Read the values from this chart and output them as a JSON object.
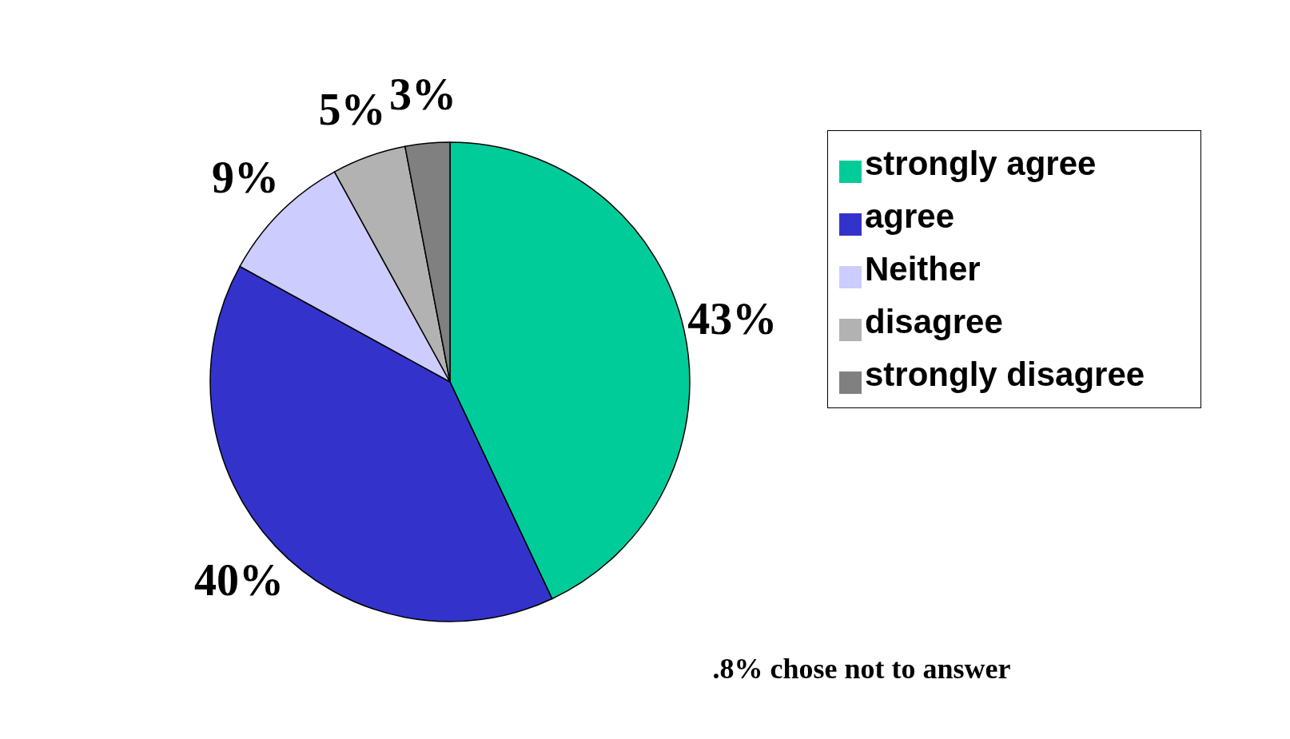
{
  "chart_data": {
    "type": "pie",
    "categories": [
      "strongly agree",
      "agree",
      "Neither",
      "disagree",
      "strongly disagree"
    ],
    "values": [
      43,
      40,
      9,
      5,
      3
    ],
    "colors": [
      "#00cc99",
      "#3333cc",
      "#ccccff",
      "#b2b2b2",
      "#808080"
    ],
    "value_labels": [
      "43%",
      "40%",
      "9%",
      "5%",
      "3%"
    ],
    "legend": "right",
    "annotations": [
      ".8% chose not to answer"
    ]
  }
}
